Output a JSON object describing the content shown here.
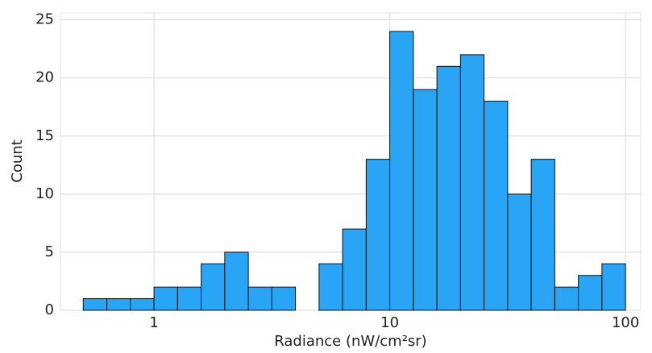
{
  "chart_data": {
    "type": "histogram",
    "xlabel": "Radiance (nW/cm²sr)",
    "ylabel": "Count",
    "bins": [
      0.501,
      0.631,
      0.794,
      1,
      1.259,
      1.585,
      1.995,
      2.512,
      3.162,
      3.981,
      5.012,
      6.31,
      7.943,
      10,
      12.59,
      15.85,
      19.95,
      25.12,
      31.62,
      39.81,
      50.12,
      63.1,
      79.43,
      100
    ],
    "values": [
      1,
      1,
      1,
      2,
      2,
      4,
      5,
      2,
      2,
      0,
      4,
      7,
      13,
      24,
      19,
      21,
      22,
      18,
      10,
      13,
      2,
      3,
      4
    ],
    "color": "#2aa5f5",
    "edgecolor": "#111111",
    "xscale": "log",
    "xlim": [
      0.401,
      116
    ],
    "xticks": [
      1,
      10,
      100
    ],
    "ylim": [
      0,
      25.6
    ],
    "yticks": [
      0,
      5,
      10,
      15,
      20,
      25
    ],
    "grid": true
  }
}
